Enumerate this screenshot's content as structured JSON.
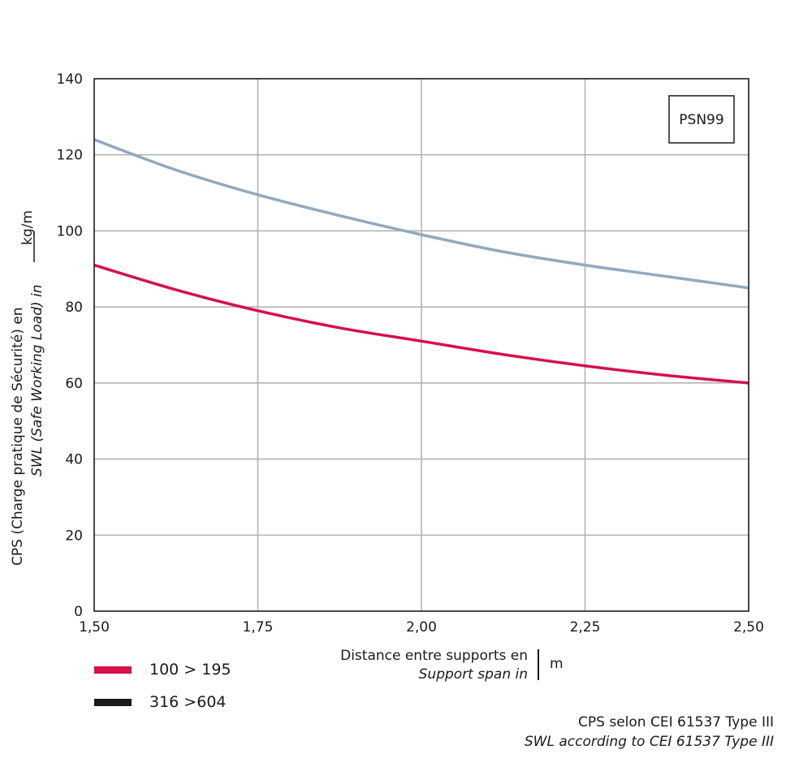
{
  "chart_data": {
    "type": "line",
    "inset_label": "PSN99",
    "x_ticks": [
      "1,50",
      "1,75",
      "2,00",
      "2,25",
      "2,50"
    ],
    "y_ticks": [
      "0",
      "20",
      "40",
      "60",
      "80",
      "100",
      "120",
      "140"
    ],
    "xlim": [
      1.5,
      2.5
    ],
    "ylim": [
      0,
      140
    ],
    "grid": true,
    "ylabel_line1": "CPS (Charge pratique de Sécurité) en",
    "ylabel_line2": "SWL (Safe Working Load) in",
    "ylabel_unit": "kg/m",
    "xlabel_line1": "Distance entre supports en",
    "xlabel_line2": "Support span in",
    "xlabel_unit": "m",
    "series": [
      {
        "color": "#8faac0",
        "x": [
          1.5,
          1.625,
          1.75,
          1.875,
          2.0,
          2.125,
          2.25,
          2.375,
          2.5
        ],
        "y": [
          124,
          116,
          109.5,
          104,
          99,
          94.5,
          91,
          88,
          85
        ]
      },
      {
        "color": "#d6104a",
        "x": [
          1.5,
          1.625,
          1.75,
          1.875,
          2.0,
          2.125,
          2.25,
          2.375,
          2.5
        ],
        "y": [
          91,
          84.5,
          79,
          74.5,
          71,
          67.5,
          64.5,
          62,
          60
        ]
      }
    ]
  },
  "legend": [
    {
      "label": "100 > 195",
      "color": "#d6104a"
    },
    {
      "label": "316 >604",
      "color": "#1a1a1a"
    }
  ],
  "footnote_line1": "CPS selon CEI 61537 Type III",
  "footnote_line2": "SWL according to CEI 61537 Type III"
}
